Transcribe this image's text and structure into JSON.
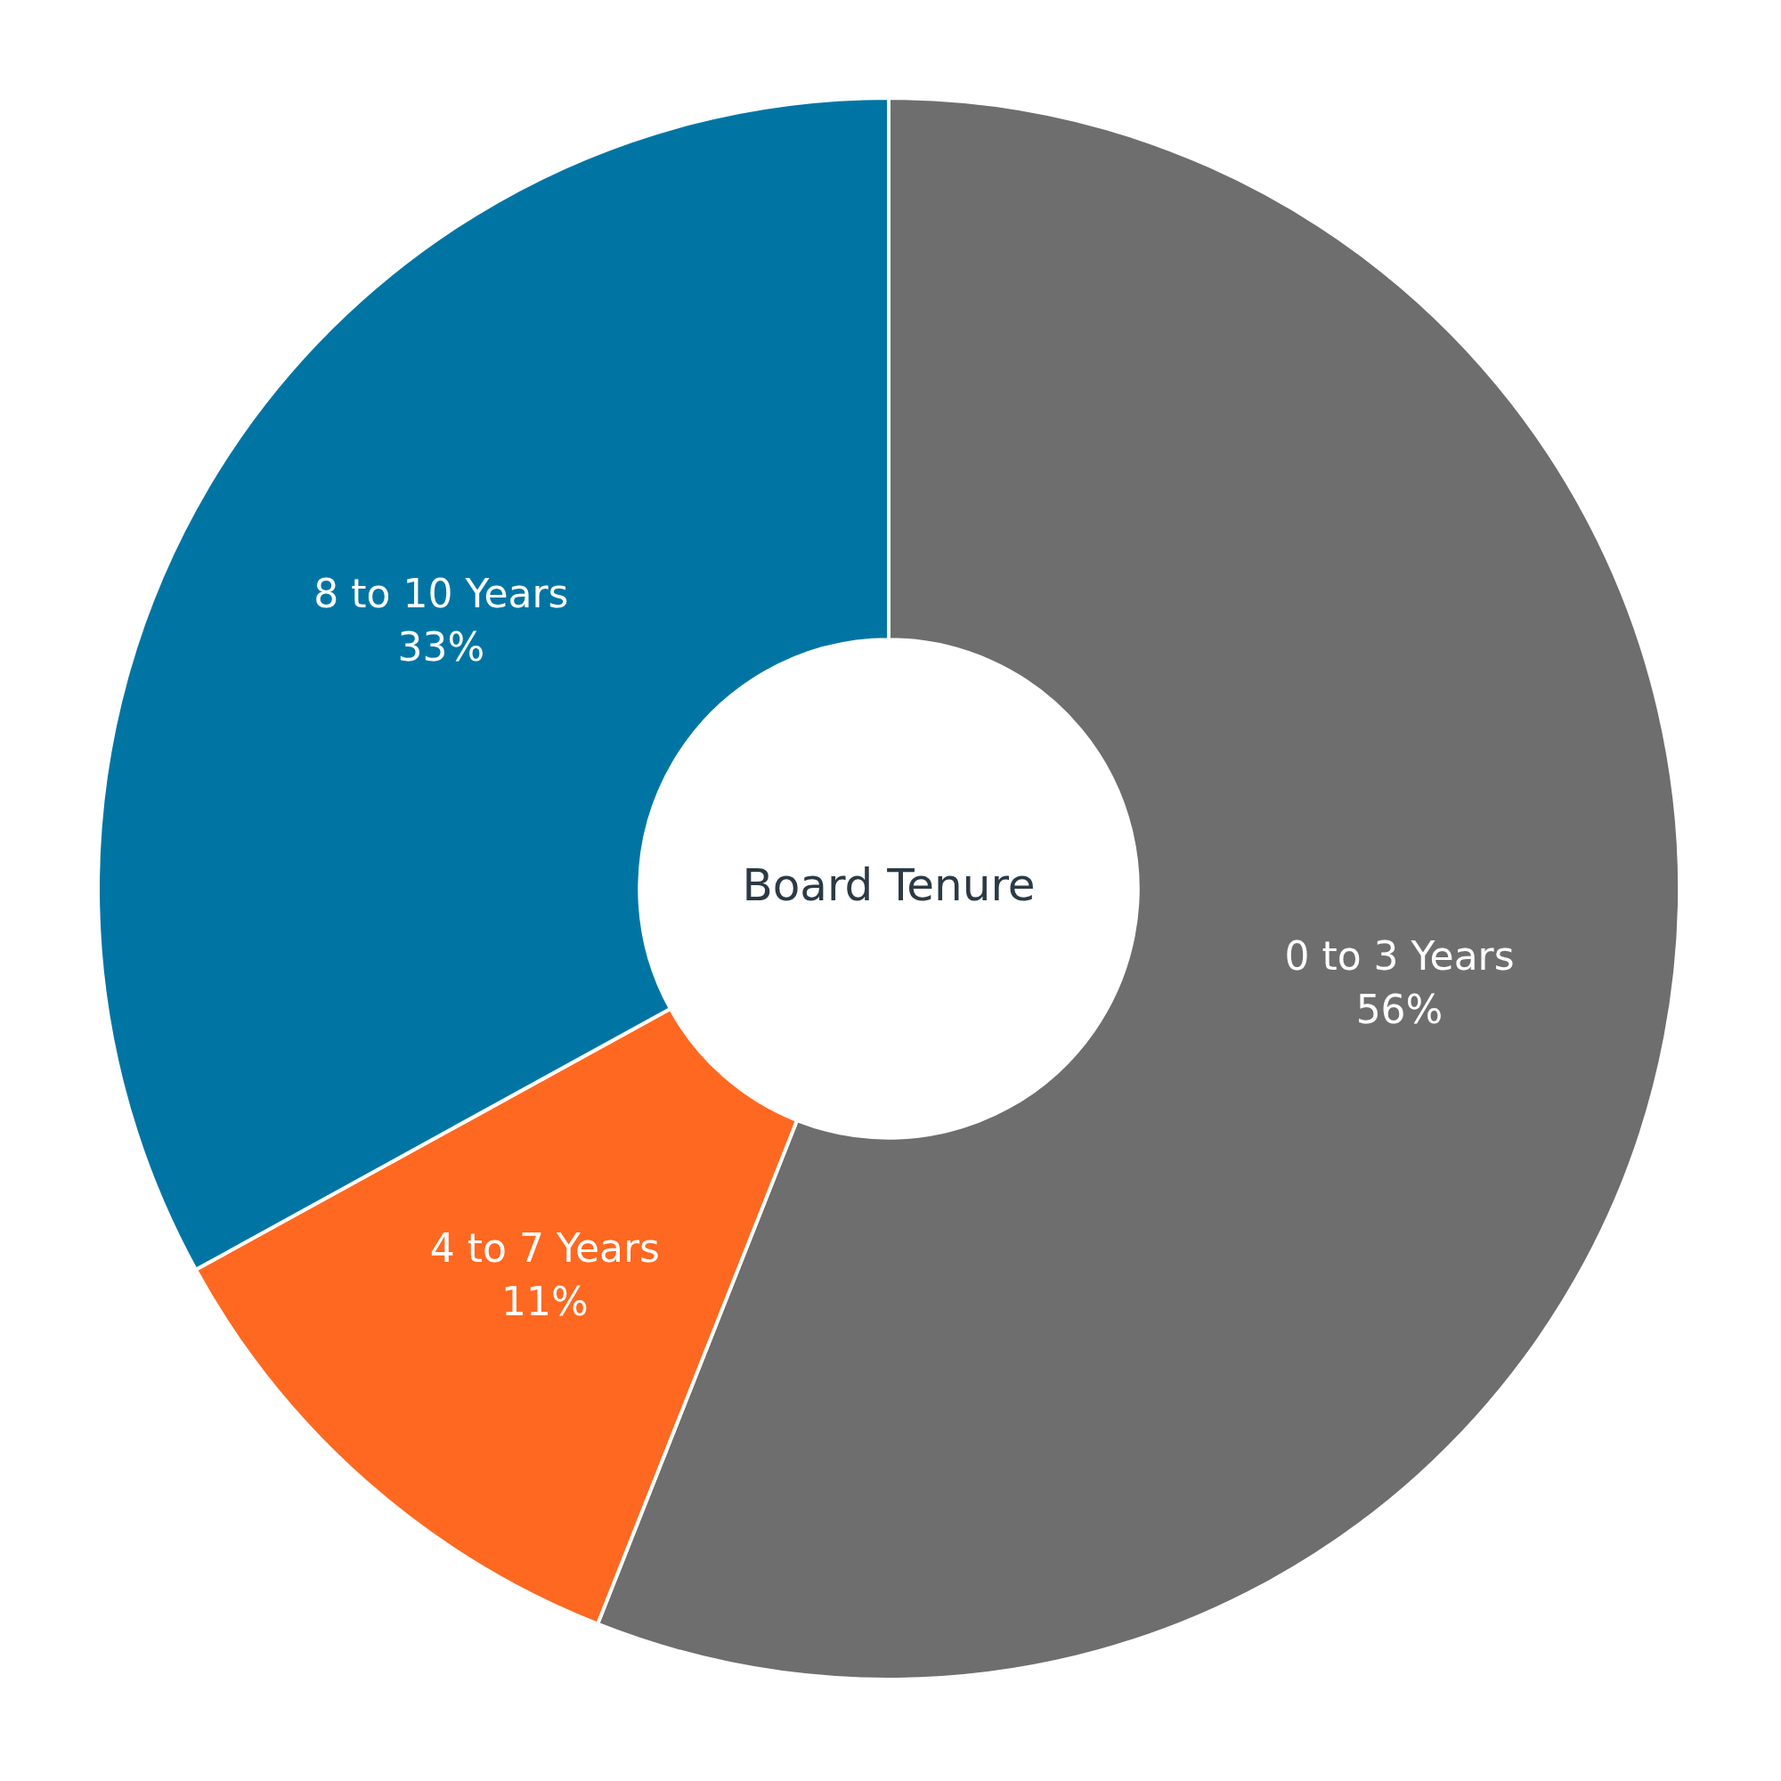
{
  "chart_data": {
    "type": "donut",
    "title": "Board Tenure",
    "categories": [
      "0 to 3 Years",
      "4 to 7 Years",
      "8 to 10 Years"
    ],
    "values": [
      56,
      11,
      33
    ],
    "value_labels": [
      "56%",
      "11%",
      "33%"
    ],
    "colors": [
      "#6e6e6e",
      "#ff6820",
      "#0075a4"
    ],
    "legend": false
  }
}
